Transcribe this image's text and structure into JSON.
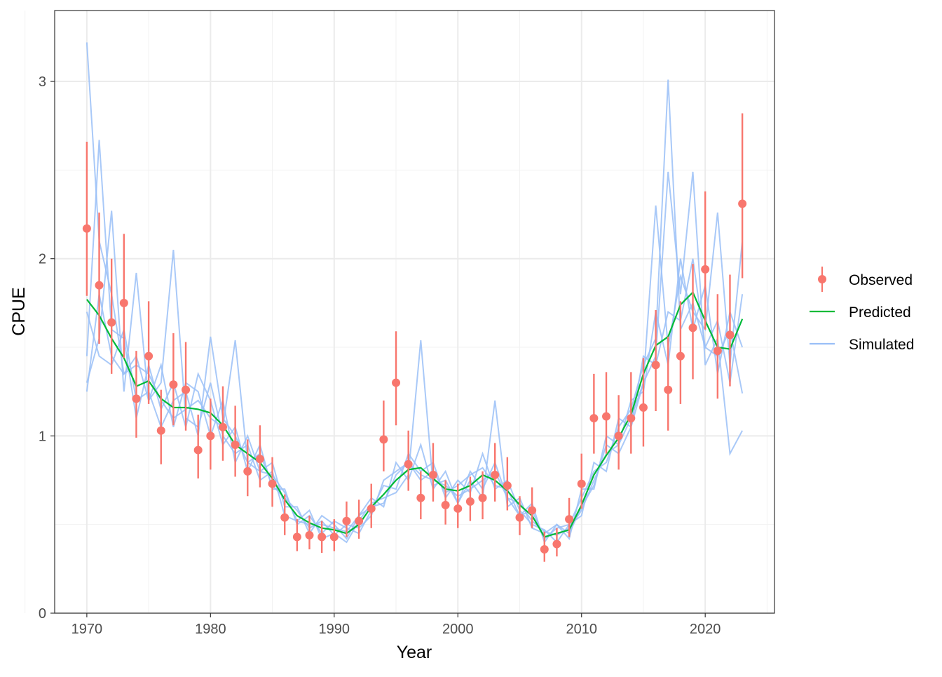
{
  "chart_data": {
    "type": "line",
    "title": "",
    "xlabel": "Year",
    "ylabel": "CPUE",
    "xlim": [
      1967.4,
      2025.6
    ],
    "ylim": [
      0,
      3.4
    ],
    "x_ticks": [
      1970,
      1980,
      1990,
      2000,
      2010,
      2020
    ],
    "x_tick_labels": [
      "1970",
      "1980",
      "1990",
      "2000",
      "2010",
      "2020"
    ],
    "y_ticks": [
      0,
      1,
      2,
      3
    ],
    "y_tick_labels": [
      "0",
      "1",
      "2",
      "3"
    ],
    "grid": true,
    "legend_placement": "right",
    "colors": {
      "observed": "#F8766D",
      "predicted": "#00BA38",
      "simulated": "#9ABFF7"
    },
    "legend": [
      "Observed",
      "Predicted",
      "Simulated"
    ],
    "years": [
      1970,
      1971,
      1972,
      1973,
      1974,
      1975,
      1976,
      1977,
      1978,
      1979,
      1980,
      1981,
      1982,
      1983,
      1984,
      1985,
      1986,
      1987,
      1988,
      1989,
      1990,
      1991,
      1992,
      1993,
      1994,
      1995,
      1996,
      1997,
      1998,
      1999,
      2000,
      2001,
      2002,
      2003,
      2004,
      2005,
      2006,
      2007,
      2008,
      2009,
      2010,
      2011,
      2012,
      2013,
      2014,
      2015,
      2016,
      2017,
      2018,
      2019,
      2020,
      2021,
      2022,
      2023
    ],
    "observed": [
      2.17,
      1.85,
      1.64,
      1.75,
      1.21,
      1.45,
      1.03,
      1.29,
      1.26,
      0.92,
      1.0,
      1.05,
      0.95,
      0.8,
      0.87,
      0.73,
      0.54,
      0.43,
      0.44,
      0.43,
      0.43,
      0.52,
      0.52,
      0.59,
      0.98,
      1.3,
      0.84,
      0.65,
      0.78,
      0.61,
      0.59,
      0.63,
      0.65,
      0.78,
      0.72,
      0.54,
      0.58,
      0.36,
      0.39,
      0.53,
      0.73,
      1.1,
      1.11,
      1.0,
      1.1,
      1.16,
      1.4,
      1.26,
      1.45,
      1.61,
      1.94,
      1.48,
      1.57,
      2.31
    ],
    "observed_upper": [
      2.66,
      2.26,
      2.0,
      2.14,
      1.48,
      1.76,
      1.26,
      1.58,
      1.53,
      1.12,
      1.21,
      1.28,
      1.17,
      0.98,
      1.06,
      0.88,
      0.67,
      0.53,
      0.55,
      0.52,
      0.53,
      0.63,
      0.64,
      0.73,
      1.2,
      1.59,
      1.03,
      0.8,
      0.96,
      0.75,
      0.73,
      0.77,
      0.8,
      0.96,
      0.88,
      0.66,
      0.71,
      0.46,
      0.48,
      0.65,
      0.9,
      1.35,
      1.36,
      1.23,
      1.36,
      1.44,
      1.71,
      1.56,
      1.76,
      1.97,
      2.38,
      1.8,
      1.91,
      2.82
    ],
    "observed_lower": [
      1.79,
      1.52,
      1.35,
      1.44,
      0.99,
      1.18,
      0.84,
      1.06,
      1.03,
      0.76,
      0.81,
      0.86,
      0.77,
      0.66,
      0.71,
      0.6,
      0.44,
      0.35,
      0.36,
      0.34,
      0.35,
      0.43,
      0.42,
      0.48,
      0.8,
      1.06,
      0.69,
      0.53,
      0.63,
      0.5,
      0.48,
      0.52,
      0.53,
      0.63,
      0.58,
      0.44,
      0.48,
      0.29,
      0.32,
      0.43,
      0.59,
      0.9,
      0.9,
      0.81,
      0.9,
      0.94,
      1.14,
      1.03,
      1.18,
      1.32,
      1.6,
      1.21,
      1.28,
      1.89
    ],
    "predicted": [
      1.77,
      1.68,
      1.55,
      1.44,
      1.28,
      1.31,
      1.21,
      1.16,
      1.16,
      1.15,
      1.13,
      1.06,
      0.95,
      0.9,
      0.85,
      0.76,
      0.64,
      0.55,
      0.51,
      0.48,
      0.47,
      0.45,
      0.5,
      0.6,
      0.67,
      0.75,
      0.81,
      0.82,
      0.76,
      0.7,
      0.69,
      0.72,
      0.78,
      0.75,
      0.69,
      0.61,
      0.55,
      0.43,
      0.45,
      0.47,
      0.61,
      0.78,
      0.89,
      0.99,
      1.12,
      1.35,
      1.51,
      1.56,
      1.74,
      1.81,
      1.65,
      1.5,
      1.49,
      1.66
    ],
    "simulated": [
      [
        3.22,
        2.1,
        1.8,
        1.35,
        1.45,
        1.2,
        1.4,
        1.05,
        1.3,
        1.25,
        1.0,
        1.2,
        0.85,
        1.0,
        0.8,
        0.85,
        0.6,
        0.6,
        0.45,
        0.55,
        0.5,
        0.42,
        0.55,
        0.65,
        0.6,
        0.85,
        0.75,
        0.95,
        0.7,
        0.8,
        0.62,
        0.8,
        0.7,
        0.85,
        0.65,
        0.55,
        0.62,
        0.4,
        0.5,
        0.42,
        0.7,
        0.7,
        1.0,
        0.95,
        1.2,
        1.25,
        1.7,
        1.4,
        2.0,
        1.6,
        1.85,
        1.35,
        1.7,
        1.5
      ],
      [
        1.45,
        2.67,
        1.6,
        1.55,
        1.1,
        1.4,
        1.15,
        1.3,
        1.05,
        1.35,
        1.2,
        0.95,
        1.05,
        0.8,
        0.95,
        0.7,
        0.7,
        0.5,
        0.55,
        0.45,
        0.52,
        0.48,
        0.45,
        0.58,
        0.72,
        0.7,
        0.9,
        0.8,
        0.85,
        0.65,
        0.75,
        0.68,
        0.9,
        0.7,
        0.75,
        0.58,
        0.5,
        0.47,
        0.4,
        0.5,
        0.55,
        0.85,
        0.8,
        1.1,
        1.05,
        1.45,
        1.4,
        1.7,
        1.65,
        2.0,
        1.5,
        1.65,
        1.3,
        1.8
      ],
      [
        1.3,
        1.55,
        2.27,
        1.25,
        1.92,
        1.2,
        1.3,
        2.05,
        1.1,
        1.05,
        1.3,
        1.0,
        0.9,
        0.95,
        0.75,
        0.8,
        0.55,
        0.52,
        0.58,
        0.42,
        0.45,
        0.4,
        0.52,
        0.62,
        0.65,
        0.68,
        0.78,
        1.54,
        0.72,
        0.75,
        0.62,
        0.75,
        0.65,
        1.2,
        0.6,
        0.65,
        0.48,
        0.45,
        0.5,
        0.45,
        0.6,
        0.72,
        0.95,
        0.9,
        1.05,
        1.3,
        2.3,
        1.5,
        1.9,
        1.7,
        1.6,
        2.26,
        1.4,
        2.1
      ],
      [
        1.7,
        1.45,
        1.4,
        1.6,
        1.2,
        1.25,
        1.05,
        1.2,
        1.25,
        1.0,
        1.56,
        1.1,
        1.0,
        0.85,
        0.9,
        0.72,
        0.65,
        0.58,
        0.48,
        0.52,
        0.44,
        0.5,
        0.48,
        0.55,
        0.75,
        0.8,
        0.85,
        0.75,
        0.8,
        0.68,
        0.72,
        0.78,
        0.82,
        0.72,
        0.7,
        0.55,
        0.58,
        0.42,
        0.48,
        0.5,
        0.65,
        0.8,
        0.85,
        1.05,
        1.15,
        1.4,
        1.55,
        3.01,
        1.6,
        1.75,
        1.5,
        1.45,
        1.6,
        1.24
      ],
      [
        1.25,
        1.8,
        1.45,
        1.35,
        1.4,
        1.35,
        1.2,
        1.1,
        1.15,
        1.2,
        1.1,
        1.05,
        1.54,
        0.85,
        0.8,
        0.78,
        0.68,
        0.52,
        0.5,
        0.5,
        0.48,
        0.46,
        0.55,
        0.6,
        0.62,
        0.78,
        0.85,
        0.78,
        0.75,
        0.72,
        0.66,
        0.7,
        0.75,
        0.8,
        0.65,
        0.62,
        0.52,
        0.46,
        0.44,
        0.48,
        0.58,
        0.75,
        0.9,
        0.95,
        1.1,
        1.3,
        1.45,
        2.49,
        1.8,
        2.49,
        1.4,
        1.55,
        0.9,
        1.03
      ]
    ]
  }
}
